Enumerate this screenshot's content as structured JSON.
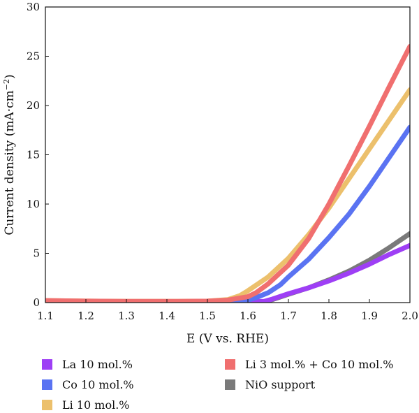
{
  "chart_data": {
    "type": "line",
    "xlabel": "E (V vs. RHE)",
    "ylabel_main": "Current density (mA·cm",
    "ylabel_sup": "−2",
    "ylabel_end": ")",
    "xlim": [
      1.1,
      2.0
    ],
    "ylim": [
      0,
      30
    ],
    "xticks": [
      "1.1",
      "1.2",
      "1.3",
      "1.4",
      "1.5",
      "1.6",
      "1.7",
      "1.8",
      "1.9",
      "2.0"
    ],
    "yticks": [
      "0",
      "5",
      "10",
      "15",
      "20",
      "25",
      "30"
    ],
    "grid": false,
    "legend_position": "bottom",
    "series": [
      {
        "name": "La 10 mol.%",
        "color": "#9e3ff5",
        "x": [
          1.1,
          1.2,
          1.3,
          1.4,
          1.5,
          1.6,
          1.64,
          1.66,
          1.7,
          1.75,
          1.8,
          1.85,
          1.9,
          1.95,
          2.0
        ],
        "y": [
          0.15,
          0.12,
          0.1,
          0.1,
          0.1,
          0.1,
          0.12,
          0.35,
          0.9,
          1.5,
          2.2,
          3.0,
          3.9,
          4.9,
          5.8
        ]
      },
      {
        "name": "Co 10 mol.%",
        "color": "#5a73f2",
        "x": [
          1.1,
          1.2,
          1.3,
          1.4,
          1.5,
          1.55,
          1.6,
          1.62,
          1.65,
          1.68,
          1.7,
          1.75,
          1.8,
          1.85,
          1.9,
          1.95,
          2.0
        ],
        "y": [
          0.15,
          0.12,
          0.1,
          0.1,
          0.1,
          0.12,
          0.25,
          0.5,
          1.0,
          1.8,
          2.6,
          4.4,
          6.6,
          9.0,
          11.8,
          14.8,
          17.8
        ]
      },
      {
        "name": "Li 10 mol.%",
        "color": "#ecc06c",
        "x": [
          1.1,
          1.2,
          1.3,
          1.4,
          1.5,
          1.55,
          1.58,
          1.6,
          1.65,
          1.7,
          1.75,
          1.8,
          1.85,
          1.9,
          1.95,
          2.0
        ],
        "y": [
          0.2,
          0.15,
          0.12,
          0.12,
          0.15,
          0.3,
          0.7,
          1.2,
          2.6,
          4.5,
          6.9,
          9.6,
          12.6,
          15.6,
          18.6,
          21.6
        ]
      },
      {
        "name": "Li 3 mol.% + Co 10 mol.%",
        "color": "#f06f6f",
        "x": [
          1.1,
          1.2,
          1.3,
          1.4,
          1.5,
          1.55,
          1.6,
          1.62,
          1.65,
          1.7,
          1.75,
          1.8,
          1.85,
          1.9,
          1.95,
          2.0
        ],
        "y": [
          0.2,
          0.15,
          0.12,
          0.12,
          0.15,
          0.25,
          0.6,
          1.0,
          1.9,
          3.8,
          6.5,
          10.0,
          13.9,
          17.9,
          22.0,
          26.0
        ]
      },
      {
        "name": "NiO support",
        "color": "#7a7a7a",
        "x": [
          1.1,
          1.3,
          1.5,
          1.6,
          1.64,
          1.66,
          1.7,
          1.75,
          1.8,
          1.85,
          1.9,
          1.95,
          2.0
        ],
        "y": [
          0.1,
          0.08,
          0.08,
          0.08,
          0.1,
          0.3,
          0.85,
          1.5,
          2.3,
          3.2,
          4.3,
          5.6,
          7.0
        ]
      }
    ]
  }
}
